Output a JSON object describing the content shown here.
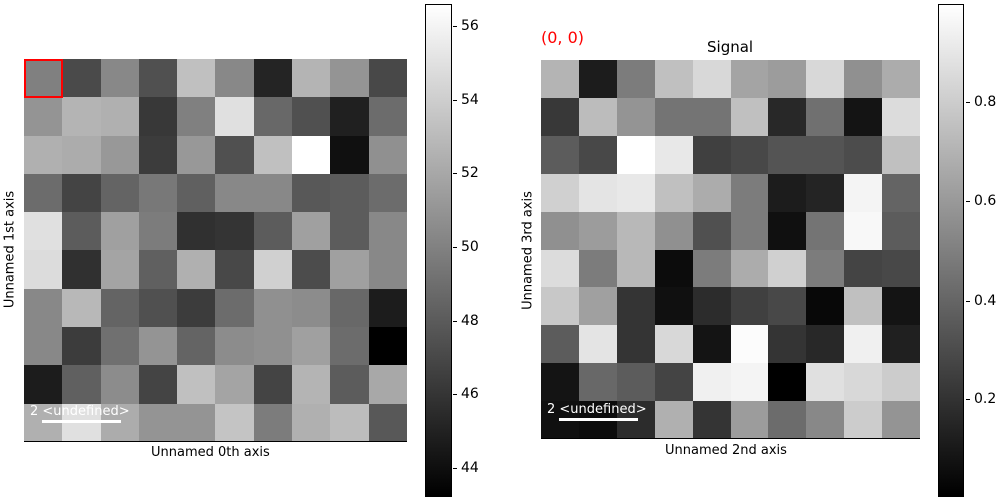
{
  "chart_data": [
    {
      "type": "heatmap",
      "title": "",
      "xlabel": "Unnamed 0th axis",
      "ylabel": "Unnamed 1st axis",
      "colormap": "gray",
      "colorbar": {
        "ticks": [
          "56",
          "54",
          "52",
          "50",
          "48",
          "46",
          "44"
        ],
        "range": [
          43.2,
          56.6
        ]
      },
      "scalebar": "2 <undefined>",
      "marker": {
        "row": 0,
        "col": 0,
        "color": "#ff0000"
      },
      "grays": [
        [
          "#808080",
          "#4a4a4a",
          "#888888",
          "#505050",
          "#c0c0c0",
          "#888888",
          "#242424",
          "#b4b4b4",
          "#949494",
          "#484848"
        ],
        [
          "#949494",
          "#b4b4b4",
          "#b0b0b0",
          "#383838",
          "#808080",
          "#e0e0e0",
          "#686868",
          "#505050",
          "#202020",
          "#6c6c6c"
        ],
        [
          "#b0b0b0",
          "#acacac",
          "#989898",
          "#3c3c3c",
          "#989898",
          "#505050",
          "#c0c0c0",
          "#ffffff",
          "#101010",
          "#909090"
        ],
        [
          "#6c6c6c",
          "#444444",
          "#646464",
          "#787878",
          "#606060",
          "#888888",
          "#888888",
          "#585858",
          "#5c5c5c",
          "#6c6c6c"
        ],
        [
          "#e0e0e0",
          "#5c5c5c",
          "#a0a0a0",
          "#7c7c7c",
          "#303030",
          "#343434",
          "#5c5c5c",
          "#a0a0a0",
          "#5c5c5c",
          "#888888"
        ],
        [
          "#dcdcdc",
          "#303030",
          "#a4a4a4",
          "#606060",
          "#b0b0b0",
          "#484848",
          "#d0d0d0",
          "#4c4c4c",
          "#a0a0a0",
          "#888888"
        ],
        [
          "#888888",
          "#b8b8b8",
          "#646464",
          "#505050",
          "#3c3c3c",
          "#6c6c6c",
          "#909090",
          "#8c8c8c",
          "#686868",
          "#1c1c1c"
        ],
        [
          "#888888",
          "#3c3c3c",
          "#707070",
          "#949494",
          "#646464",
          "#8c8c8c",
          "#909090",
          "#a0a0a0",
          "#6c6c6c",
          "#000000"
        ],
        [
          "#1c1c1c",
          "#606060",
          "#8c8c8c",
          "#444444",
          "#c0c0c0",
          "#a4a4a4",
          "#444444",
          "#b4b4b4",
          "#5c5c5c",
          "#a8a8a8"
        ],
        [
          "#b0b0b0",
          "#e0e0e0",
          "#acacac",
          "#949494",
          "#949494",
          "#c4c4c4",
          "#7c7c7c",
          "#b0b0b0",
          "#bcbcbc",
          "#585858"
        ]
      ]
    },
    {
      "type": "heatmap",
      "title": "Signal",
      "xlabel": "Unnamed 2nd axis",
      "ylabel": "Unnamed 3rd axis",
      "colormap": "gray",
      "colorbar": {
        "ticks": [
          "0.8",
          "0.6",
          "0.4",
          "0.2"
        ],
        "range": [
          0.0,
          0.99
        ]
      },
      "scalebar": "2 <undefined>",
      "coordinate_label": "(0, 0)",
      "grays": [
        [
          "#b4b4b4",
          "#1c1c1c",
          "#7c7c7c",
          "#c0c0c0",
          "#d8d8d8",
          "#a4a4a4",
          "#9c9c9c",
          "#d8d8d8",
          "#909090",
          "#acacac"
        ],
        [
          "#383838",
          "#bcbcbc",
          "#949494",
          "#747474",
          "#747474",
          "#c0c0c0",
          "#282828",
          "#707070",
          "#141414",
          "#dcdcdc"
        ],
        [
          "#5c5c5c",
          "#484848",
          "#ffffff",
          "#e8e8e8",
          "#404040",
          "#484848",
          "#545454",
          "#545454",
          "#4c4c4c",
          "#c0c0c0"
        ],
        [
          "#d0d0d0",
          "#e4e4e4",
          "#e8e8e8",
          "#c0c0c0",
          "#acacac",
          "#7c7c7c",
          "#1c1c1c",
          "#242424",
          "#f4f4f4",
          "#646464"
        ],
        [
          "#909090",
          "#9c9c9c",
          "#b8b8b8",
          "#909090",
          "#505050",
          "#7c7c7c",
          "#101010",
          "#747474",
          "#f8f8f8",
          "#5c5c5c"
        ],
        [
          "#dcdcdc",
          "#7c7c7c",
          "#b8b8b8",
          "#0c0c0c",
          "#7c7c7c",
          "#acacac",
          "#d0d0d0",
          "#7c7c7c",
          "#444444",
          "#484848"
        ],
        [
          "#c8c8c8",
          "#a0a0a0",
          "#343434",
          "#101010",
          "#2c2c2c",
          "#404040",
          "#484848",
          "#080808",
          "#c0c0c0",
          "#141414"
        ],
        [
          "#5c5c5c",
          "#e4e4e4",
          "#343434",
          "#d8d8d8",
          "#141414",
          "#fcfcfc",
          "#343434",
          "#282828",
          "#f0f0f0",
          "#202020"
        ],
        [
          "#141414",
          "#686868",
          "#5c5c5c",
          "#444444",
          "#f0f0f0",
          "#f4f4f4",
          "#000000",
          "#e0e0e0",
          "#d8d8d8",
          "#cccccc"
        ],
        [
          "#101010",
          "#0c0c0c",
          "#2c2c2c",
          "#b0b0b0",
          "#343434",
          "#9c9c9c",
          "#6c6c6c",
          "#888888",
          "#cccccc",
          "#949494"
        ]
      ]
    }
  ],
  "left": {
    "xlabel": "Unnamed 0th axis",
    "ylabel": "Unnamed 1st axis",
    "scalebar": "2 <undefined>",
    "cbar_ticks": [
      "56",
      "54",
      "52",
      "50",
      "48",
      "46",
      "44"
    ]
  },
  "right": {
    "title": "Signal",
    "coord": "(0, 0)",
    "xlabel": "Unnamed 2nd axis",
    "ylabel": "Unnamed 3rd axis",
    "scalebar": "2 <undefined>",
    "cbar_ticks": [
      "0.8",
      "0.6",
      "0.4",
      "0.2"
    ]
  }
}
